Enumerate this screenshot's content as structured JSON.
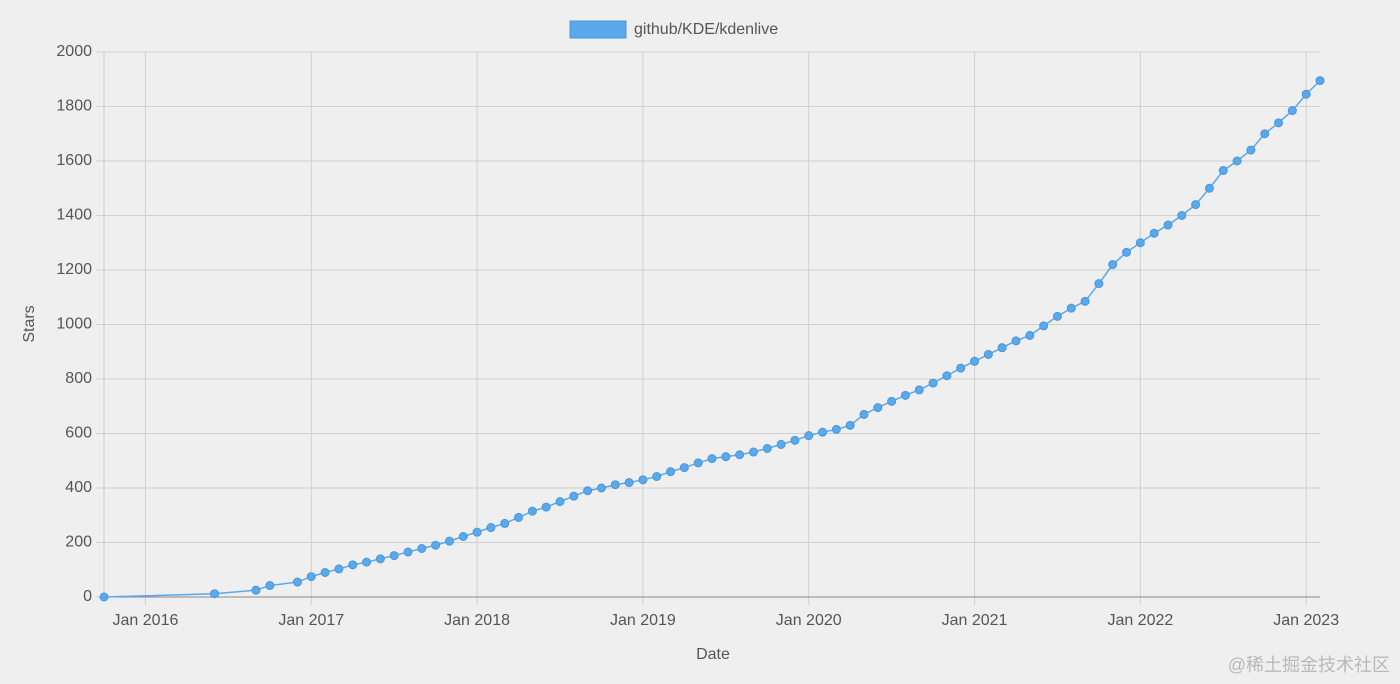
{
  "chart_data": {
    "type": "line",
    "x_label": "Date",
    "y_label": "Stars",
    "x": [
      "2015-10",
      "2016-06",
      "2016-09",
      "2016-10",
      "2016-12",
      "2017-01",
      "2017-02",
      "2017-03",
      "2017-04",
      "2017-05",
      "2017-06",
      "2017-07",
      "2017-08",
      "2017-09",
      "2017-10",
      "2017-11",
      "2017-12",
      "2018-01",
      "2018-02",
      "2018-03",
      "2018-04",
      "2018-05",
      "2018-06",
      "2018-07",
      "2018-08",
      "2018-09",
      "2018-10",
      "2018-11",
      "2018-12",
      "2019-01",
      "2019-02",
      "2019-03",
      "2019-04",
      "2019-05",
      "2019-06",
      "2019-07",
      "2019-08",
      "2019-09",
      "2019-10",
      "2019-11",
      "2019-12",
      "2020-01",
      "2020-02",
      "2020-03",
      "2020-04",
      "2020-05",
      "2020-06",
      "2020-07",
      "2020-08",
      "2020-09",
      "2020-10",
      "2020-11",
      "2020-12",
      "2021-01",
      "2021-02",
      "2021-03",
      "2021-04",
      "2021-05",
      "2021-06",
      "2021-07",
      "2021-08",
      "2021-09",
      "2021-10",
      "2021-11",
      "2021-12",
      "2022-01",
      "2022-02",
      "2022-03",
      "2022-04",
      "2022-05",
      "2022-06",
      "2022-07",
      "2022-08",
      "2022-09",
      "2022-10",
      "2022-11",
      "2022-12",
      "2023-01",
      "2023-02"
    ],
    "series": [
      {
        "name": "github/KDE/kdenlive",
        "color": "#5aa9ec",
        "values": [
          0,
          12,
          25,
          42,
          55,
          75,
          90,
          103,
          118,
          128,
          140,
          152,
          165,
          178,
          190,
          205,
          222,
          238,
          255,
          270,
          292,
          315,
          330,
          350,
          370,
          390,
          400,
          412,
          420,
          430,
          442,
          460,
          475,
          492,
          508,
          515,
          522,
          532,
          545,
          560,
          575,
          592,
          605,
          615,
          630,
          670,
          695,
          718,
          740,
          760,
          785,
          812,
          840,
          865,
          890,
          915,
          940,
          960,
          995,
          1030,
          1060,
          1085,
          1150,
          1220,
          1265,
          1300,
          1335,
          1365,
          1400,
          1440,
          1500,
          1565,
          1600,
          1640,
          1700,
          1740,
          1785,
          1845,
          1895
        ]
      }
    ],
    "xlim": [
      "2015-10",
      "2023-02"
    ],
    "xticks": [
      {
        "value": "2016-01",
        "label": "Jan 2016"
      },
      {
        "value": "2017-01",
        "label": "Jan 2017"
      },
      {
        "value": "2018-01",
        "label": "Jan 2018"
      },
      {
        "value": "2019-01",
        "label": "Jan 2019"
      },
      {
        "value": "2020-01",
        "label": "Jan 2020"
      },
      {
        "value": "2021-01",
        "label": "Jan 2021"
      },
      {
        "value": "2022-01",
        "label": "Jan 2022"
      },
      {
        "value": "2023-01",
        "label": "Jan 2023"
      }
    ],
    "ylim": [
      0,
      2000
    ],
    "yticks": [
      0,
      200,
      400,
      600,
      800,
      1000,
      1200,
      1400,
      1600,
      1800,
      2000
    ],
    "grid": true,
    "legend": "top",
    "watermark": "@稀土掘金技术社区"
  }
}
